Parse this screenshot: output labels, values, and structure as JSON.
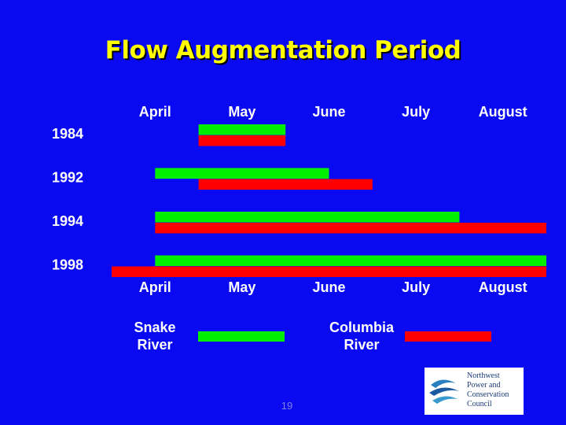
{
  "chart_data": {
    "type": "timeline",
    "title": "Flow Augmentation Period",
    "categories": [
      "1984",
      "1992",
      "1994",
      "1998"
    ],
    "xlim": [
      3.5,
      8.5
    ],
    "xticks": [
      {
        "value": 4,
        "label": "April"
      },
      {
        "value": 5,
        "label": "May"
      },
      {
        "value": 6,
        "label": "June"
      },
      {
        "value": 7,
        "label": "July"
      },
      {
        "value": 8,
        "label": "August"
      }
    ],
    "series": [
      {
        "name": "Snake River",
        "color": "#00ee00",
        "values": [
          [
            4.5,
            5.5
          ],
          [
            4,
            6
          ],
          [
            4,
            7.5
          ],
          [
            4,
            8.5
          ]
        ]
      },
      {
        "name": "Columbia River",
        "color": "#ff0000",
        "values": [
          [
            4.5,
            5.5
          ],
          [
            4.5,
            6.5
          ],
          [
            4,
            8.5
          ],
          [
            3.5,
            8.5
          ]
        ]
      }
    ]
  },
  "page_number": "19",
  "logo": [
    "Northwest",
    "Power and",
    "Conservation",
    "Council"
  ]
}
